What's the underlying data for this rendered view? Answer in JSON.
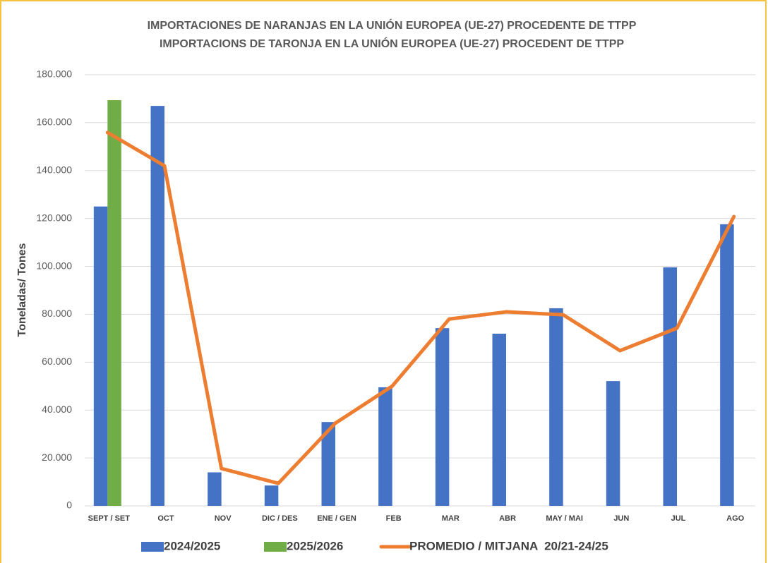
{
  "chart_data": {
    "type": "bar",
    "title": [
      "IMPORTACIONES DE NARANJAS EN LA UNIÓN EUROPEA (UE-27) PROCEDENTE DE TTPP",
      "IMPORTACIONS DE TARONJA EN LA UNIÓN EUROPEA (UE-27) PROCEDENT DE TTPP"
    ],
    "y_label": "Toneladas/ Tones",
    "categories": [
      "SEPT / SET",
      "OCT",
      "NOV",
      "DIC / DES",
      "ENE / GEN",
      "FEB",
      "MAR",
      "ABR",
      "MAY / MAI",
      "JUN",
      "JUL",
      "AGO"
    ],
    "series": [
      {
        "name": "2024/2025",
        "color": "#4472c4",
        "type": "bar",
        "values": [
          125000,
          167000,
          14000,
          8500,
          35000,
          49500,
          74200,
          71900,
          82500,
          52100,
          99600,
          117600
        ]
      },
      {
        "name": "2025/2026",
        "color": "#70ad47",
        "type": "bar",
        "values": [
          169400,
          null,
          null,
          null,
          null,
          null,
          null,
          null,
          null,
          null,
          null,
          null
        ]
      },
      {
        "name": "PROMEDIO / MITJANA  20/21-24/25",
        "color": "#ed7d31",
        "type": "line",
        "values": [
          155900,
          142000,
          15600,
          9400,
          34500,
          50000,
          78000,
          81000,
          79800,
          64800,
          74200,
          120800
        ]
      }
    ],
    "ylim": [
      0,
      180000
    ],
    "yticks": [
      0,
      {
        "value": 20000,
        "label": "20.000"
      },
      {
        "value": 40000,
        "label": "40.000"
      },
      {
        "value": 60000,
        "label": "60.000"
      },
      {
        "value": 80000,
        "label": "80.000"
      },
      {
        "value": 100000,
        "label": "100.000"
      },
      {
        "value": 120000,
        "label": "120.000"
      },
      {
        "value": 140000,
        "label": "140.000"
      },
      {
        "value": 160000,
        "label": "160.000"
      },
      {
        "value": 180000,
        "label": "180.000"
      }
    ],
    "grid": true,
    "legend": "bottom"
  }
}
